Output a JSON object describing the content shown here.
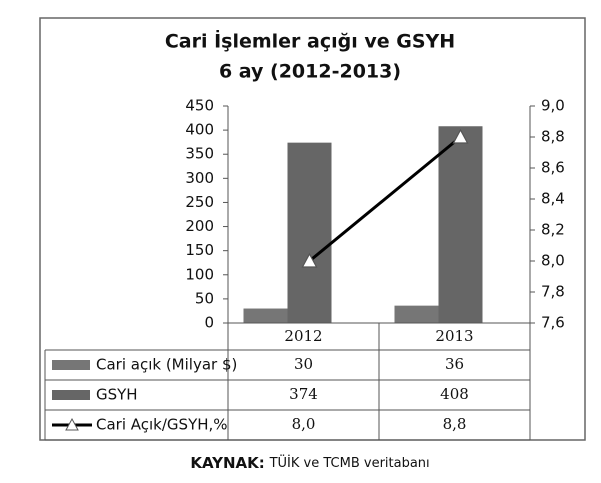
{
  "chart_data": {
    "type": "bar",
    "title": [
      "Cari İşlemler açığı ve GSYH",
      "6 ay (2012-2013)"
    ],
    "categories": [
      "2012",
      "2013"
    ],
    "series": [
      {
        "name": "Cari açık (Milyar $)",
        "color": "#767676",
        "values": [
          30,
          36
        ]
      },
      {
        "name": "GSYH",
        "color": "#666666",
        "values": [
          374,
          408
        ]
      },
      {
        "name": "Cari Açık/GSYH,%",
        "color": "#000000",
        "type": "line",
        "axis": "y2",
        "values": [
          8.0,
          8.8
        ],
        "value_labels": [
          "8,0",
          "8,8"
        ]
      }
    ],
    "ylim": [
      0,
      450
    ],
    "yticks": [
      0,
      50,
      100,
      150,
      200,
      250,
      300,
      350,
      400,
      450
    ],
    "y2lim": [
      7.6,
      9.0
    ],
    "y2ticks": [
      {
        "value": 7.6,
        "label": "7,6"
      },
      {
        "value": 7.8,
        "label": "7,8"
      },
      {
        "value": 8.0,
        "label": "8,0"
      },
      {
        "value": 8.2,
        "label": "8,2"
      },
      {
        "value": 8.4,
        "label": "8,4"
      },
      {
        "value": 8.6,
        "label": "8,6"
      },
      {
        "value": 8.8,
        "label": "8,8"
      },
      {
        "value": 9.0,
        "label": "9,0"
      }
    ],
    "source_label": "KAYNAK:",
    "source": "TÜİK ve TCMB veritabanı"
  }
}
